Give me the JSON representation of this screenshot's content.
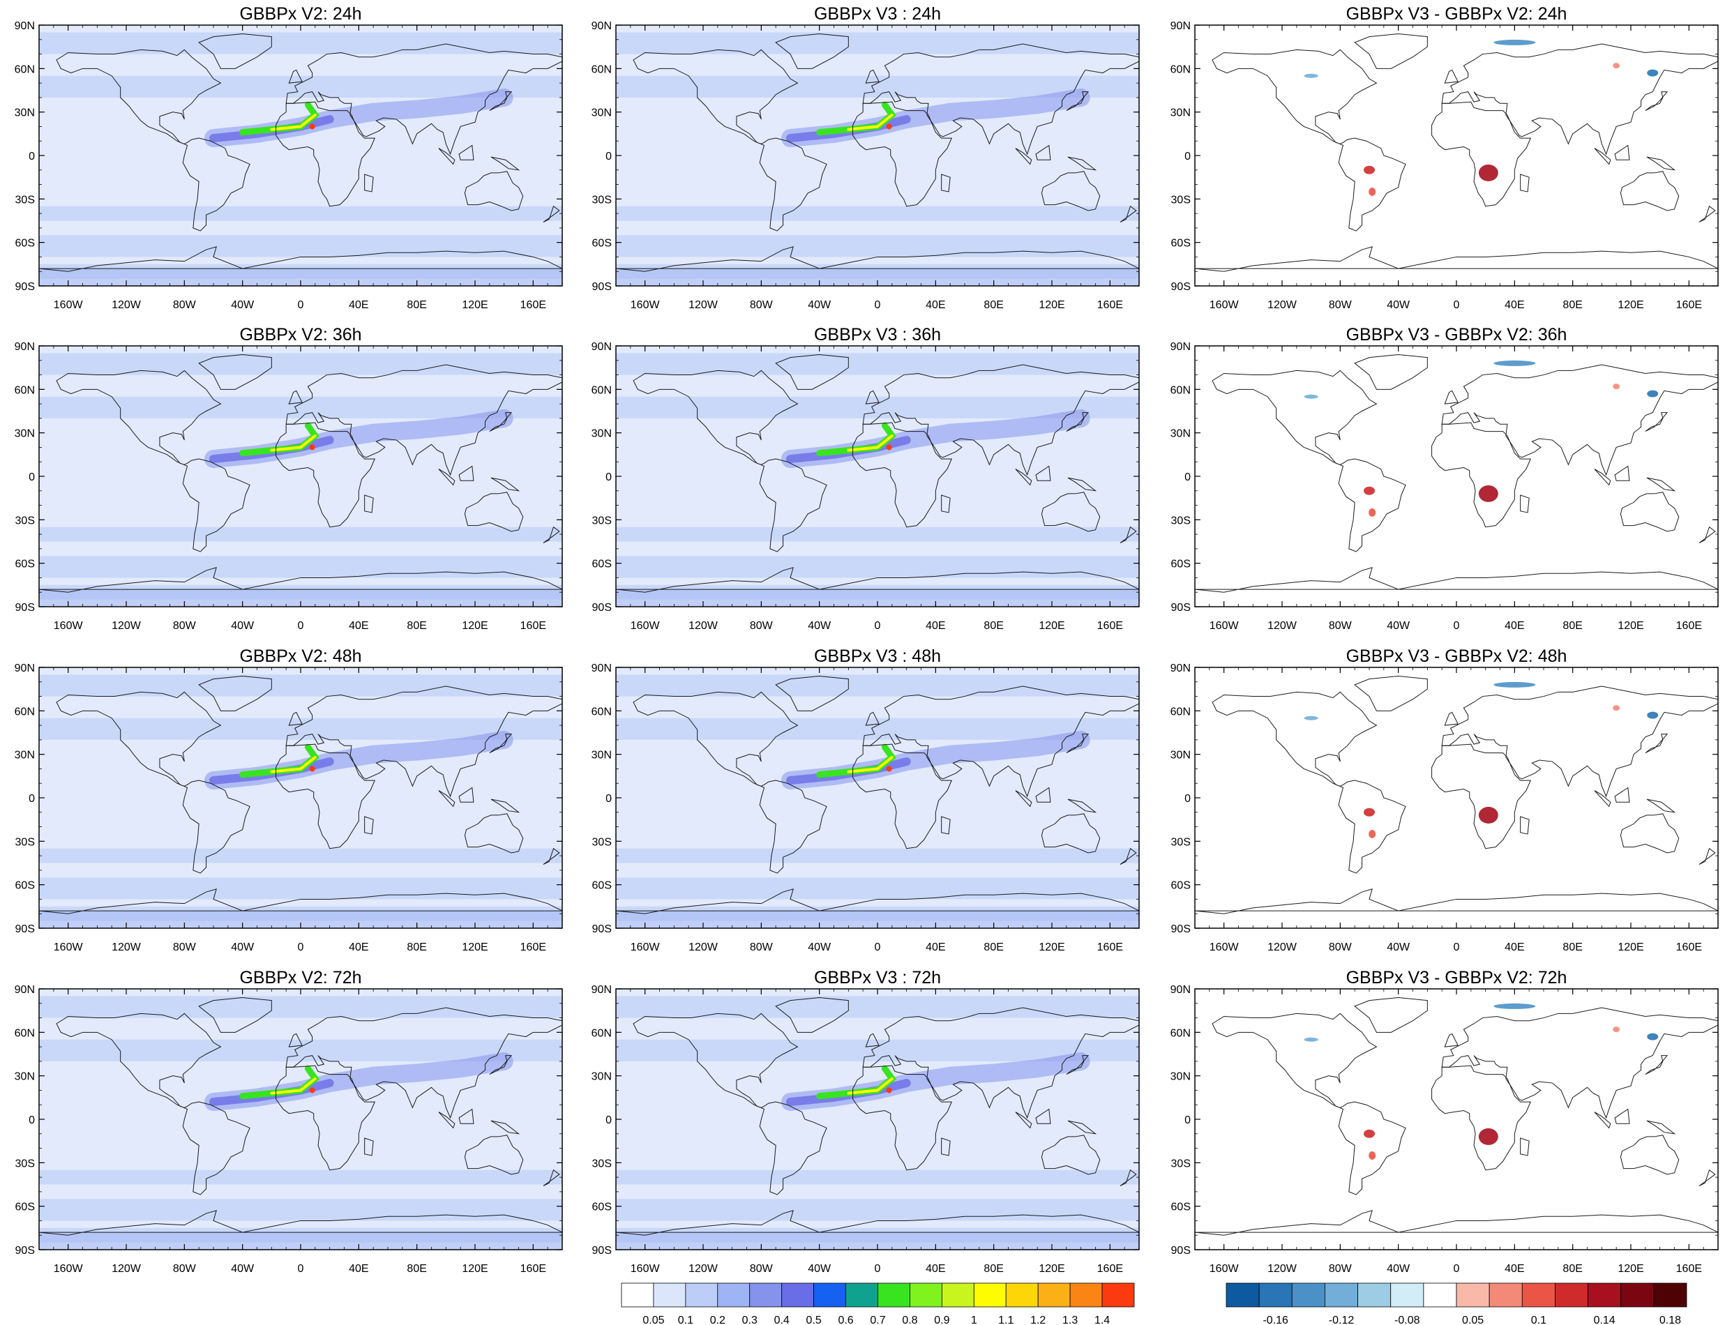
{
  "panel_titles": [
    [
      "GBBPx V2: 24h",
      "GBBPx V3 : 24h",
      "GBBPx V3 - GBBPx V2: 24h"
    ],
    [
      "GBBPx V2: 36h",
      "GBBPx V3 : 36h",
      "GBBPx V3 - GBBPx V2: 36h"
    ],
    [
      "GBBPx V2: 48h",
      "GBBPx V3 : 48h",
      "GBBPx V3 - GBBPx V2: 48h"
    ],
    [
      "GBBPx V2: 72h",
      "GBBPx V3 : 72h",
      "GBBPx V3 - GBBPx V2: 72h"
    ]
  ],
  "lat_labels": [
    "90N",
    "60N",
    "30N",
    "0",
    "30S",
    "60S",
    "90S"
  ],
  "lon_labels": [
    "160W",
    "120W",
    "80W",
    "40W",
    "0",
    "40E",
    "80E",
    "120E",
    "160E"
  ],
  "lon_values": [
    -160,
    -120,
    -80,
    -40,
    0,
    40,
    80,
    120,
    160
  ],
  "lat_values": [
    90,
    60,
    30,
    0,
    -30,
    -60,
    -90
  ],
  "colorbar_aod": {
    "labels": [
      "0.05",
      "0.1",
      "0.2",
      "0.3",
      "0.4",
      "0.5",
      "0.6",
      "0.7",
      "0.8",
      "0.9",
      "1",
      "1.1",
      "1.2",
      "1.3",
      "1.4"
    ],
    "colors": [
      "#ffffff",
      "#dce6fb",
      "#bccdf8",
      "#9fb4f4",
      "#8593ec",
      "#6a6ee6",
      "#1561f2",
      "#0fa38f",
      "#37e41f",
      "#80f21d",
      "#c9f51f",
      "#fdfd00",
      "#fcd607",
      "#fab016",
      "#fb8514",
      "#fb3a0f"
    ]
  },
  "colorbar_diff": {
    "labels": [
      "-0.16",
      "-0.12",
      "-0.08",
      "0.05",
      "0.1",
      "0.14",
      "0.18"
    ],
    "label_slots": [
      1,
      3,
      5,
      7,
      9,
      11,
      13
    ],
    "colors": [
      "#0d5aa0",
      "#2a75b5",
      "#4b91c8",
      "#72aed7",
      "#9ccde5",
      "#d2edf7",
      "#ffffff",
      "#f9b9a9",
      "#f38a78",
      "#ea5546",
      "#cf2a2c",
      "#a8101f",
      "#7b0611",
      "#4e0204"
    ]
  },
  "colors": {
    "coast": "#1a1a1a",
    "ocean_light": "#e2eafc",
    "ocean_mid": "#c3d3f8",
    "land_white": "#ffffff"
  }
}
